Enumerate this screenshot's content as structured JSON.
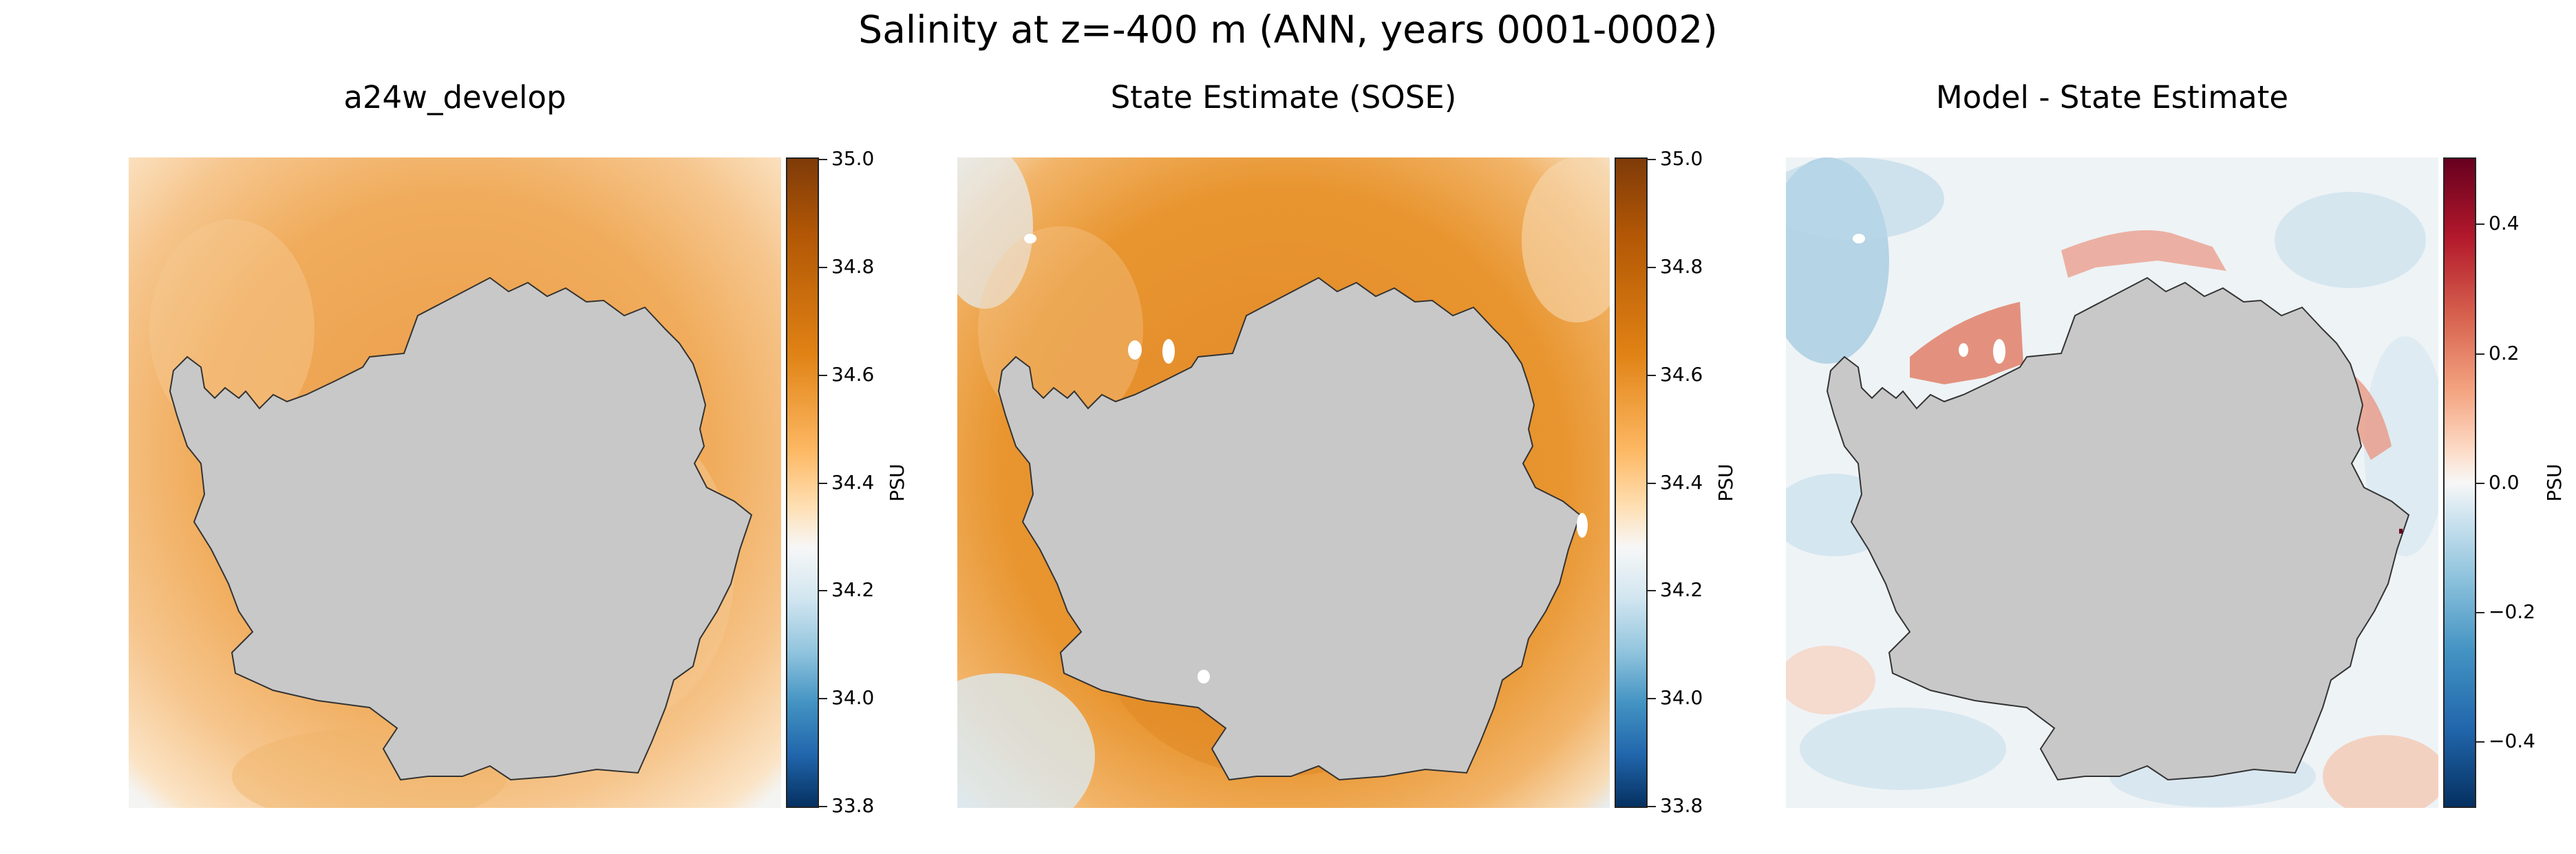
{
  "title": "Salinity at z=-400 m (ANN, years 0001-0002)",
  "colors": {
    "land": "#c8c8c8",
    "orange_dark": "#e08a2a",
    "orange_mid": "#f2b264",
    "orange_light": "#fbe0bd",
    "neutral": "#f7f7f7",
    "blue_light": "#d4e6f1",
    "red_mid": "#e3826a"
  },
  "panels": [
    {
      "title": "a24w_develop",
      "colorbar": {
        "label": "PSU",
        "min": 33.8,
        "max": 35.0,
        "colormap": "PuOr_r",
        "ticks": [
          "35.0",
          "34.8",
          "34.6",
          "34.4",
          "34.2",
          "34.0",
          "33.8"
        ]
      }
    },
    {
      "title": "State Estimate (SOSE)",
      "colorbar": {
        "label": "PSU",
        "min": 33.8,
        "max": 35.0,
        "colormap": "PuOr_r",
        "ticks": [
          "35.0",
          "34.8",
          "34.6",
          "34.4",
          "34.2",
          "34.0",
          "33.8"
        ]
      }
    },
    {
      "title": "Model - State Estimate",
      "colorbar": {
        "label": "PSU",
        "min": -0.5,
        "max": 0.5,
        "colormap": "RdBu_r",
        "ticks": [
          "0.4",
          "0.2",
          "0.0",
          "−0.2",
          "−0.4"
        ]
      }
    }
  ]
}
